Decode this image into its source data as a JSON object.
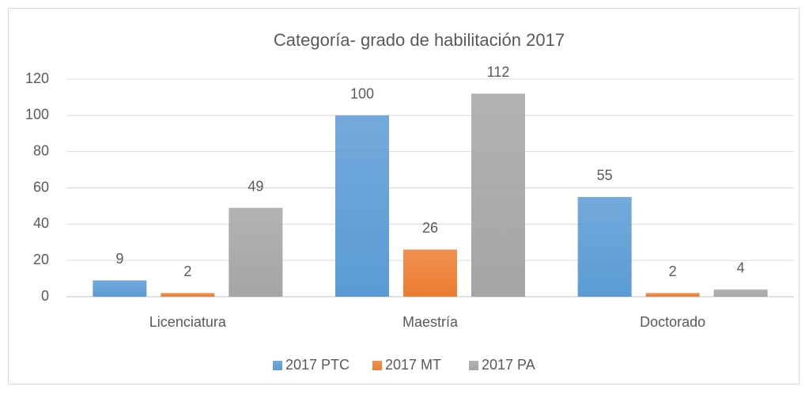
{
  "chart_data": {
    "type": "bar",
    "title": "Categoría- grado de habilitación 2017",
    "categories": [
      "Licenciatura",
      "Maestría",
      "Doctorado"
    ],
    "series": [
      {
        "name": "2017 PTC",
        "color": "#5b9bd5",
        "values": [
          9,
          100,
          55
        ]
      },
      {
        "name": "2017 MT",
        "color": "#ed7d31",
        "values": [
          2,
          26,
          2
        ]
      },
      {
        "name": "2017 PA",
        "color": "#a5a5a5",
        "values": [
          49,
          112,
          4
        ]
      }
    ],
    "ylim": [
      0,
      120
    ],
    "yticks": [
      0,
      20,
      40,
      60,
      80,
      100,
      120
    ],
    "grid": true,
    "legend": "bottom"
  }
}
